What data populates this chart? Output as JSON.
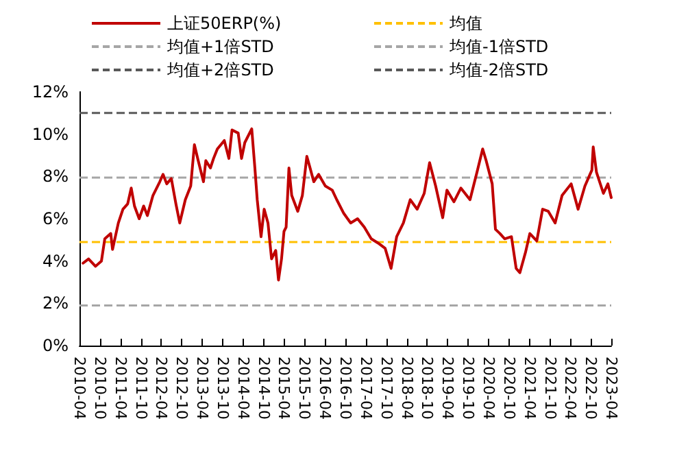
{
  "chart_data": {
    "type": "line",
    "x": [
      "2010-05-03",
      "2010-06-21",
      "2010-08-22",
      "2010-10-14",
      "2010-11-13",
      "2011-01-05",
      "2011-01-21",
      "2011-03-14",
      "2011-04-24",
      "2011-06-05",
      "2011-07-07",
      "2011-08-05",
      "2011-09-16",
      "2011-10-26",
      "2011-11-28",
      "2012-01-17",
      "2012-03-18",
      "2012-04-16",
      "2012-05-19",
      "2012-06-29",
      "2012-08-09",
      "2012-09-12",
      "2012-11-01",
      "2012-12-19",
      "2013-01-21",
      "2013-02-24",
      "2013-04-12",
      "2013-05-03",
      "2013-06-13",
      "2013-07-11",
      "2013-08-14",
      "2013-10-15",
      "2013-11-25",
      "2013-12-23",
      "2014-02-16",
      "2014-03-18",
      "2014-04-16",
      "2014-06-17",
      "2014-07-15",
      "2014-08-05",
      "2014-09-08",
      "2014-10-06",
      "2014-11-09",
      "2014-12-11",
      "2015-01-17",
      "2015-02-11",
      "2015-03-10",
      "2015-04-01",
      "2015-04-20",
      "2015-05-15",
      "2015-06-09",
      "2015-08-02",
      "2015-09-12",
      "2015-10-22",
      "2015-11-20",
      "2015-12-23",
      "2016-02-04",
      "2016-04-04",
      "2016-06-05",
      "2016-07-15",
      "2016-09-16",
      "2016-11-16",
      "2017-01-17",
      "2017-03-18",
      "2017-05-19",
      "2017-07-19",
      "2017-09-20",
      "2017-11-12",
      "2018-01-01",
      "2018-03-02",
      "2018-05-02",
      "2018-07-03",
      "2018-09-04",
      "2018-10-22",
      "2018-12-15",
      "2019-02-16",
      "2019-03-26",
      "2019-05-27",
      "2019-07-28",
      "2019-10-18",
      "2019-12-19",
      "2020-02-08",
      "2020-03-10",
      "2020-05-03",
      "2020-06-01",
      "2020-07-11",
      "2020-08-22",
      "2020-10-22",
      "2020-12-03",
      "2021-01-05",
      "2021-02-24",
      "2021-04-04",
      "2021-06-05",
      "2021-07-27",
      "2021-09-16",
      "2021-11-16",
      "2022-01-17",
      "2022-04-08",
      "2022-06-09",
      "2022-08-09",
      "2022-10-10",
      "2022-10-22",
      "2022-11-20",
      "2023-01-21",
      "2023-03-02",
      "2023-04-01"
    ],
    "series": [
      {
        "name": "上证50ERP(%)",
        "color": "#c00000",
        "values": [
          3.9,
          4.1,
          3.75,
          4.0,
          5.05,
          5.3,
          4.55,
          5.8,
          6.45,
          6.7,
          7.45,
          6.6,
          6.0,
          6.6,
          6.15,
          7.1,
          7.75,
          8.1,
          7.65,
          7.9,
          6.7,
          5.8,
          6.9,
          7.55,
          9.5,
          8.75,
          7.75,
          8.75,
          8.4,
          8.85,
          9.3,
          9.7,
          8.85,
          10.2,
          10.05,
          8.85,
          9.6,
          10.25,
          8.4,
          6.9,
          5.15,
          6.45,
          5.8,
          4.1,
          4.5,
          3.1,
          4.1,
          5.4,
          5.6,
          8.4,
          7.1,
          6.35,
          7.1,
          8.95,
          8.4,
          7.75,
          8.1,
          7.55,
          7.35,
          6.9,
          6.25,
          5.8,
          6.0,
          5.6,
          5.05,
          4.85,
          4.6,
          3.65,
          5.15,
          5.8,
          6.9,
          6.45,
          7.2,
          8.65,
          7.55,
          6.05,
          7.35,
          6.8,
          7.45,
          6.9,
          8.2,
          9.3,
          8.75,
          7.65,
          5.5,
          5.3,
          5.05,
          5.15,
          3.65,
          3.45,
          4.4,
          5.3,
          4.95,
          6.45,
          6.35,
          5.8,
          7.1,
          7.65,
          6.45,
          7.55,
          8.3,
          9.4,
          8.2,
          7.2,
          7.65,
          7.0
        ]
      }
    ],
    "ref_lines": [
      {
        "axis": "y",
        "value": 4.9,
        "label": "均值",
        "color": "#ffc000",
        "line_style": "dashed"
      },
      {
        "axis": "y",
        "value": 7.95,
        "label": "均值+1倍STD",
        "color": "#a6a6a6",
        "line_style": "dashed"
      },
      {
        "axis": "y",
        "value": 1.9,
        "label": "均值-1倍STD",
        "color": "#a6a6a6",
        "line_style": "dashed"
      },
      {
        "axis": "y",
        "value": 11.0,
        "label": "均值+2倍STD",
        "color": "#595959",
        "line_style": "dashed"
      },
      {
        "axis": "y",
        "value": null,
        "label": "均值-2倍STD",
        "color": "#595959",
        "line_style": "dashed"
      }
    ],
    "xlim": [
      "2010-04",
      "2023-04"
    ],
    "xticks": [
      "2010-04",
      "2010-10",
      "2011-04",
      "2011-10",
      "2012-04",
      "2012-10",
      "2013-04",
      "2013-10",
      "2014-04",
      "2014-10",
      "2015-04",
      "2015-10",
      "2016-04",
      "2016-10",
      "2017-04",
      "2017-10",
      "2018-04",
      "2018-10",
      "2019-04",
      "2019-10",
      "2020-04",
      "2020-10",
      "2021-04",
      "2021-10",
      "2022-04",
      "2022-10",
      "2023-04"
    ],
    "ylim": [
      0,
      12
    ],
    "yticks": [
      {
        "value": 0,
        "label": "0%"
      },
      {
        "value": 2,
        "label": "2%"
      },
      {
        "value": 4,
        "label": "4%"
      },
      {
        "value": 6,
        "label": "6%"
      },
      {
        "value": 8,
        "label": "8%"
      },
      {
        "value": 10,
        "label": "10%"
      },
      {
        "value": 12,
        "label": "12%"
      }
    ],
    "grid": false,
    "legend": "top",
    "marker": "none",
    "line_style": "solid"
  }
}
